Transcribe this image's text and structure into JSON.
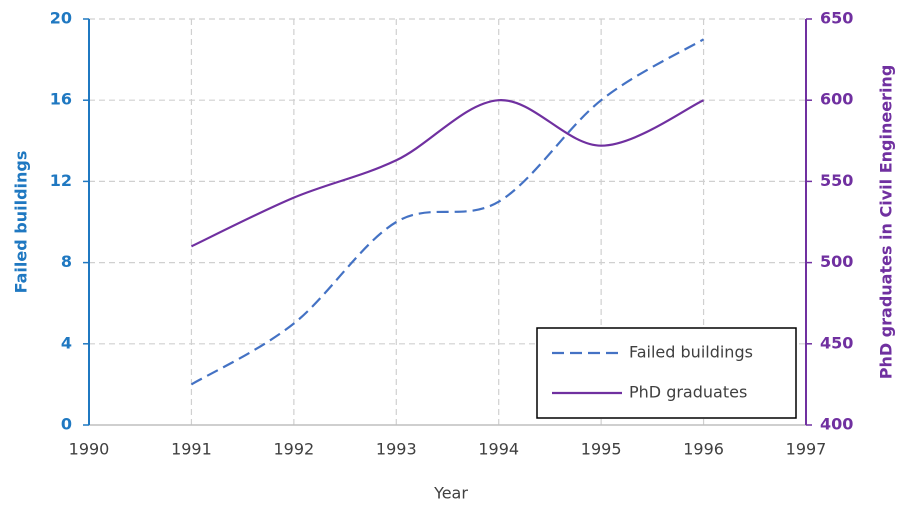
{
  "chart_data": {
    "type": "line",
    "x": [
      1991,
      1992,
      1993,
      1994,
      1995,
      1996
    ],
    "series": [
      {
        "name": "Failed buildings",
        "color": "#4472c4",
        "dash": true,
        "values": [
          2,
          5,
          10,
          11,
          16,
          19
        ]
      },
      {
        "name": "PhD graduates",
        "color": "#7030a0",
        "axis": "y2",
        "values": [
          510,
          540,
          563,
          600,
          572,
          600
        ]
      }
    ],
    "xlabel": "Year",
    "ylabel": "Failed buildings",
    "y2label": "PhD graduates in Civil Engineering",
    "xlim": [
      1990,
      1997
    ],
    "xticks": [
      1990,
      1991,
      1992,
      1993,
      1994,
      1995,
      1996,
      1997
    ],
    "ylim": [
      0,
      20
    ],
    "yticks": [
      0,
      4,
      8,
      12,
      16,
      20
    ],
    "y2lim": [
      400,
      650
    ],
    "y2ticks": [
      400,
      450,
      500,
      550,
      600,
      650
    ],
    "ycolor": "#1f78c1",
    "y2color": "#7030a0",
    "grid": true,
    "smooth": true,
    "legend": "lower right"
  }
}
